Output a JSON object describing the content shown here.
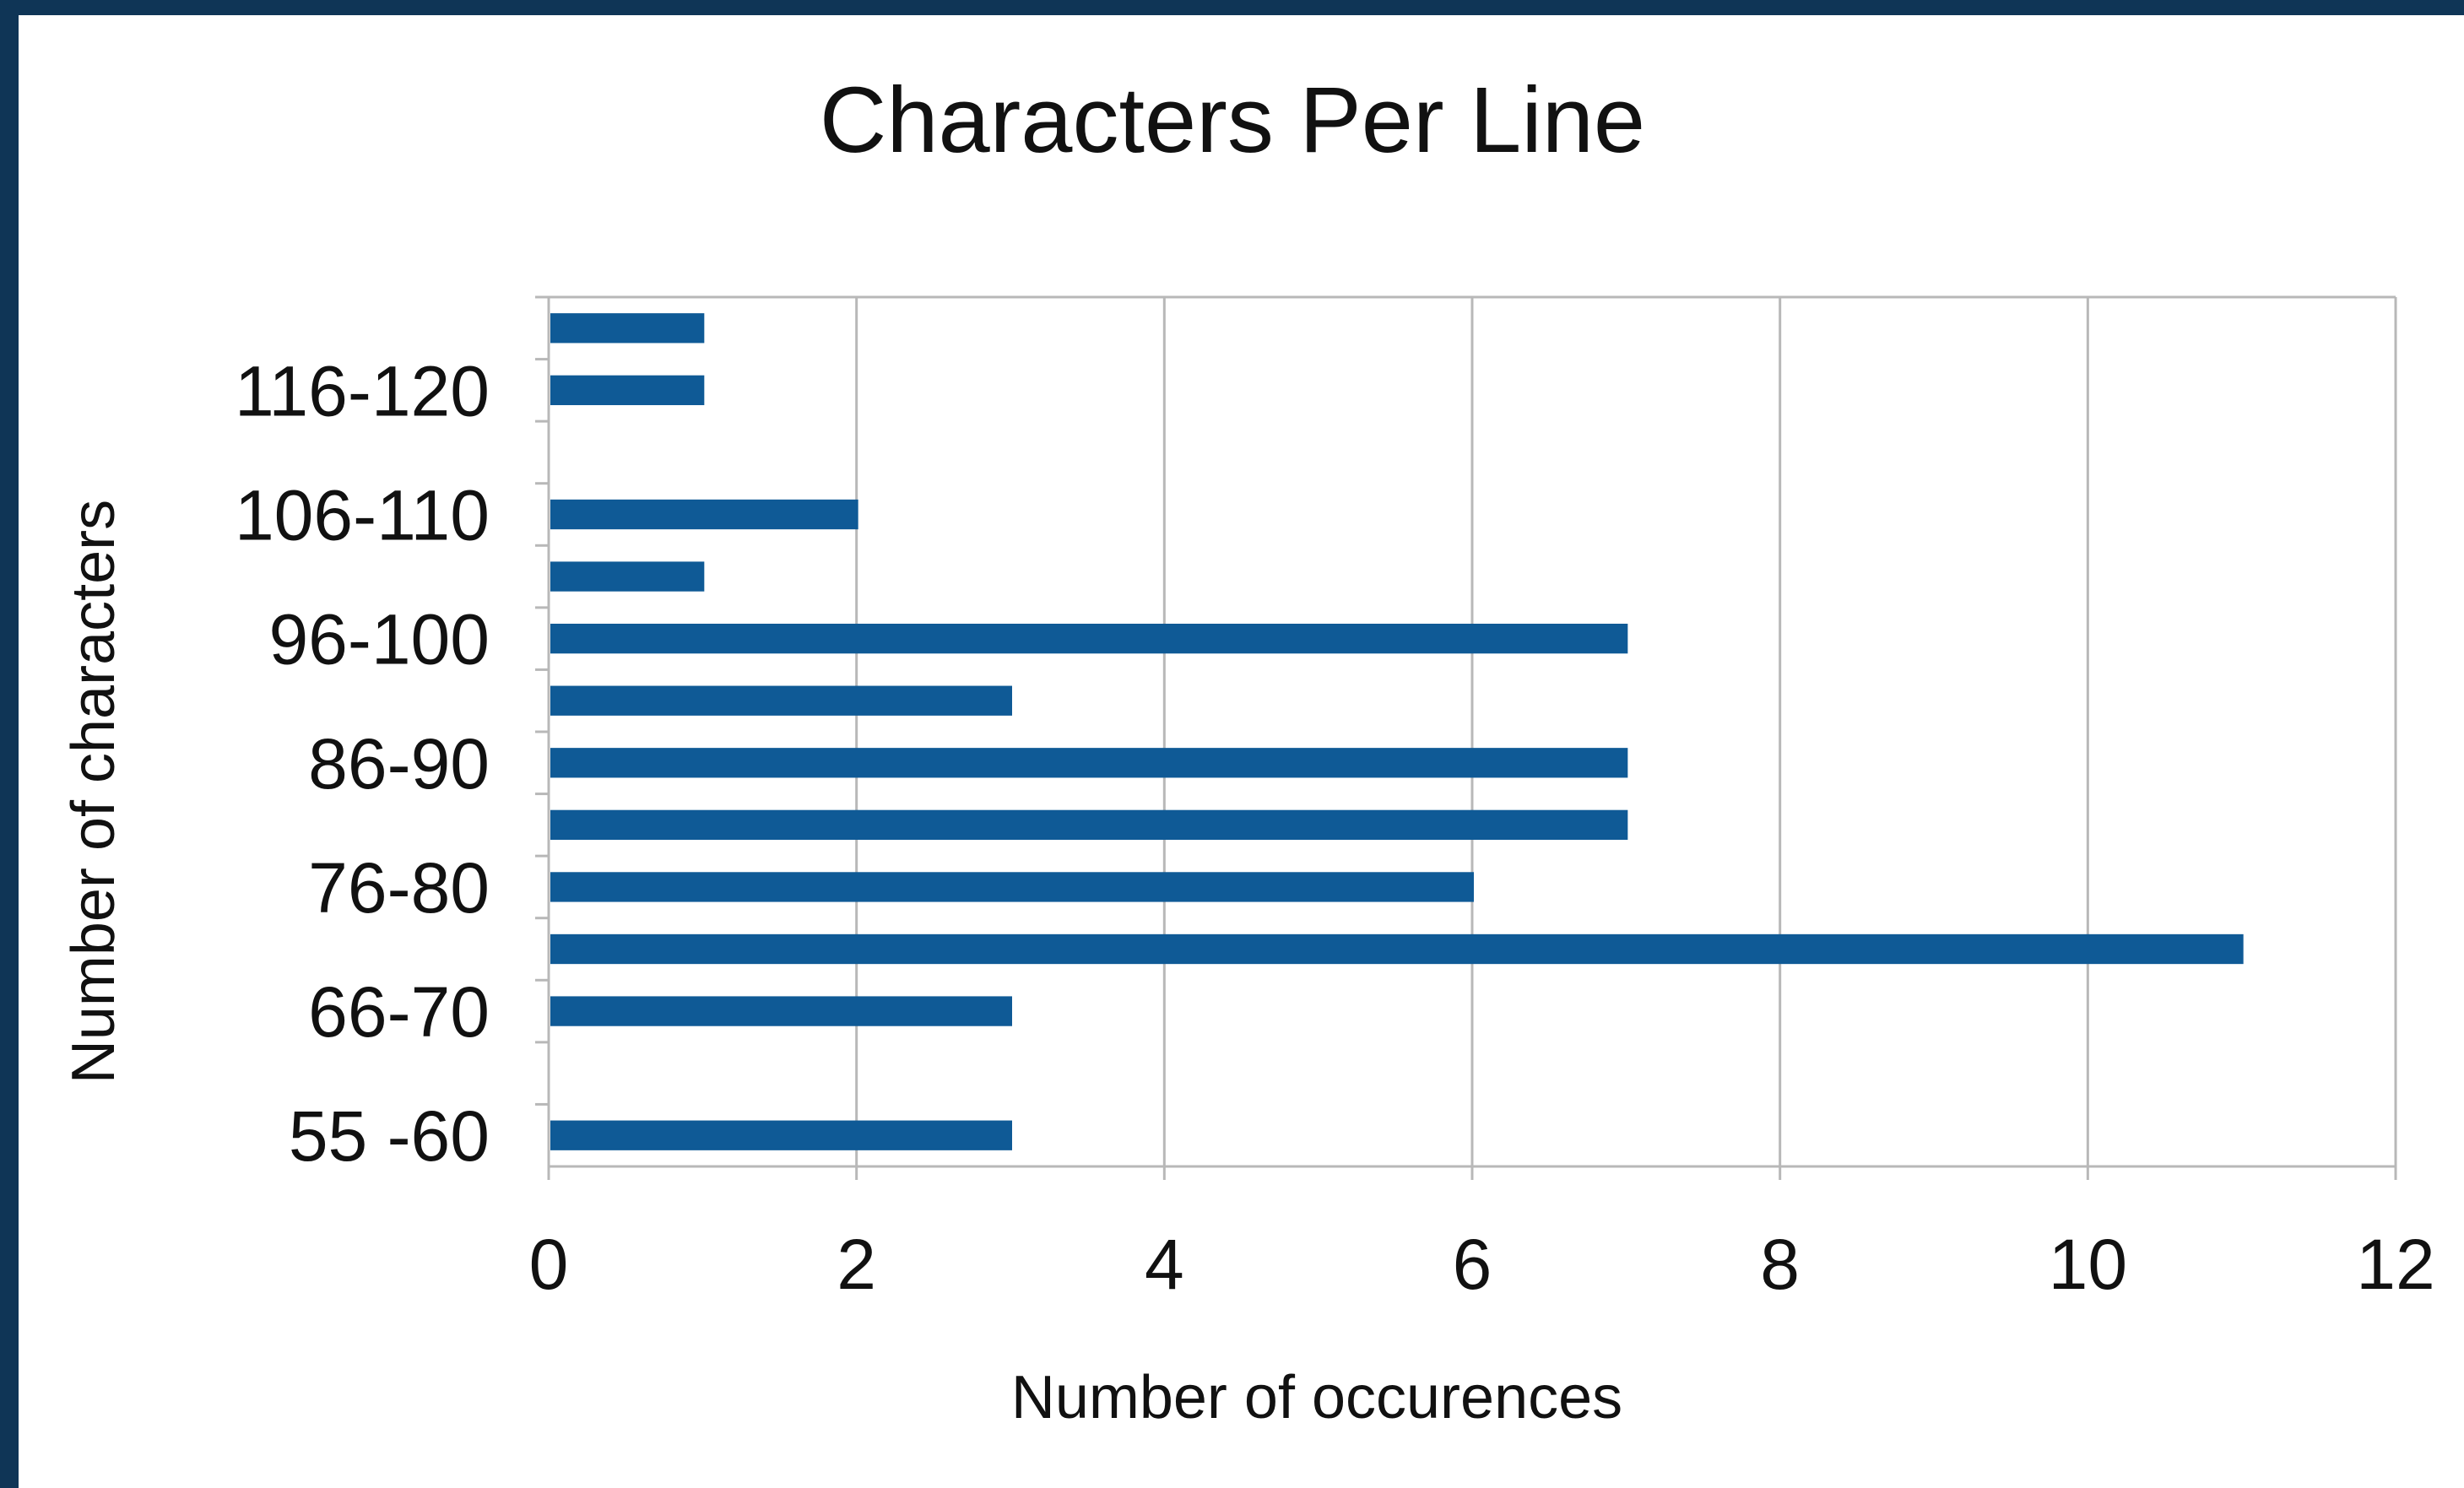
{
  "chart_data": {
    "type": "bar",
    "orientation": "horizontal",
    "title": "Characters Per Line",
    "xlabel": "Number of occurences",
    "ylabel": "Number of characters",
    "xlim": [
      0,
      12
    ],
    "x_ticks": [
      "0",
      "2",
      "4",
      "6",
      "8",
      "10",
      "12"
    ],
    "categories": [
      "55 -60",
      "",
      "66-70",
      "",
      "76-80",
      "",
      "86-90",
      "",
      "96-100",
      "",
      "106-110",
      "",
      "116-120",
      ""
    ],
    "values": [
      3,
      0,
      3,
      11,
      6,
      7,
      7,
      3,
      7,
      1,
      2,
      0,
      1,
      1
    ],
    "bar_color": "#0f5a96",
    "grid": "vertical",
    "legend": "none"
  }
}
